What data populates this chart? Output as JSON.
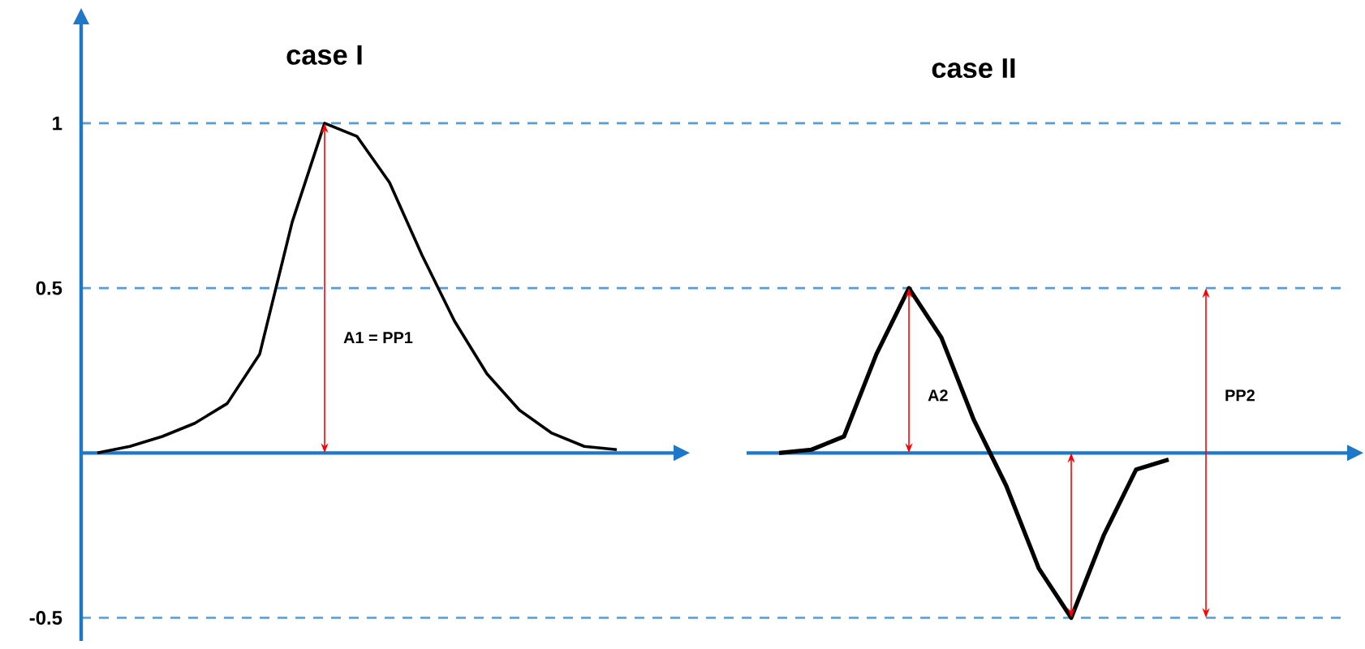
{
  "chart_data": {
    "type": "line",
    "categories": [
      null,
      null,
      null,
      null,
      null,
      null,
      null,
      null,
      null,
      null,
      null,
      null,
      null,
      null,
      null,
      null,
      null,
      null,
      null,
      null,
      null,
      null,
      null,
      null,
      null,
      null,
      null,
      null,
      null,
      null,
      null,
      null,
      null,
      null,
      null,
      null,
      null,
      null,
      null
    ],
    "series": [
      {
        "color": "#000000",
        "values": [
          0,
          0.02,
          0.05,
          0.09,
          0.15,
          0.3,
          0.7,
          1.0,
          0.96,
          0.82,
          0.6,
          0.4,
          0.24,
          0.13,
          0.06,
          0.02,
          0.01,
          null,
          null,
          null,
          null,
          null,
          null,
          null,
          null,
          null,
          null,
          null,
          null,
          null,
          null,
          null,
          null,
          null,
          null,
          null,
          null,
          null,
          null
        ]
      },
      {
        "color": "#000000",
        "values": [
          null,
          null,
          null,
          null,
          null,
          null,
          null,
          null,
          null,
          null,
          null,
          null,
          null,
          null,
          null,
          null,
          null,
          null,
          null,
          null,
          null,
          0,
          0.01,
          0.05,
          0.3,
          0.5,
          0.35,
          0.1,
          -0.1,
          -0.35,
          -0.5,
          -0.25,
          -0.05,
          -0.02,
          null,
          null,
          null,
          null,
          null
        ]
      }
    ],
    "ylim": [
      -0.57,
      1.3
    ],
    "yticks": [
      1,
      0.5,
      -0.5
    ],
    "ref_lines": [
      {
        "axis": "y",
        "value": 1,
        "color": "#5b9bd5",
        "line_style": "dashed"
      },
      {
        "axis": "y",
        "value": 0.5,
        "color": "#5b9bd5",
        "line_style": "dashed"
      },
      {
        "axis": "y",
        "value": -0.5,
        "color": "#5b9bd5",
        "line_style": "dashed"
      },
      {
        "axis": "y",
        "value": 0,
        "color": "#1f77c8",
        "line_style": "solid"
      }
    ],
    "annotations": [
      "case I",
      "A1 = PP1",
      "case II",
      "A2",
      "PP2"
    ]
  }
}
